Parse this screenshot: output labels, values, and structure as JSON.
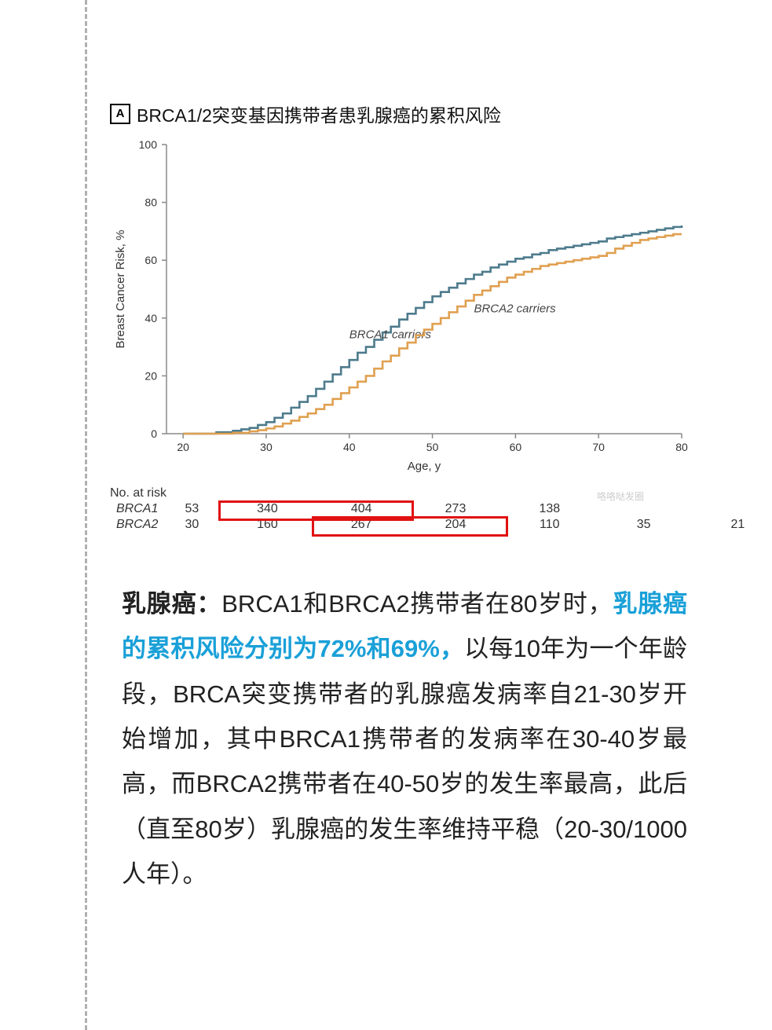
{
  "chart": {
    "panel_label": "A",
    "title": "BRCA1/2突变基因携带者患乳腺癌的累积风险",
    "type": "step-line",
    "x_label": "Age, y",
    "y_label": "Breast Cancer Risk, %",
    "x_lim": [
      18,
      80
    ],
    "y_lim": [
      0,
      100
    ],
    "x_ticks": [
      20,
      30,
      40,
      50,
      60,
      70,
      80
    ],
    "y_ticks": [
      0,
      20,
      40,
      60,
      80,
      100
    ],
    "axis_color": "#888888",
    "tick_font_size": 14,
    "label_font_size": 15,
    "grid": false,
    "series": [
      {
        "name": "BRCA1 carriers",
        "color": "#4d7b8c",
        "line_width": 2.6,
        "label_xy": [
          40,
          33
        ],
        "label_font_style": "italic",
        "data": [
          [
            20,
            0
          ],
          [
            22,
            0
          ],
          [
            24,
            0.5
          ],
          [
            26,
            1
          ],
          [
            27,
            1.5
          ],
          [
            28,
            2
          ],
          [
            29,
            3
          ],
          [
            30,
            4
          ],
          [
            31,
            5.5
          ],
          [
            32,
            7
          ],
          [
            33,
            9
          ],
          [
            34,
            11
          ],
          [
            35,
            13
          ],
          [
            36,
            15.5
          ],
          [
            37,
            18
          ],
          [
            38,
            20.5
          ],
          [
            39,
            23
          ],
          [
            40,
            25.5
          ],
          [
            41,
            28
          ],
          [
            42,
            30
          ],
          [
            43,
            32.5
          ],
          [
            44,
            35
          ],
          [
            45,
            37
          ],
          [
            46,
            39.5
          ],
          [
            47,
            41.5
          ],
          [
            48,
            43.5
          ],
          [
            49,
            45.5
          ],
          [
            50,
            47.5
          ],
          [
            51,
            49
          ],
          [
            52,
            50.5
          ],
          [
            53,
            52
          ],
          [
            54,
            53.5
          ],
          [
            55,
            55
          ],
          [
            56,
            56
          ],
          [
            57,
            57.5
          ],
          [
            58,
            58.5
          ],
          [
            59,
            59.5
          ],
          [
            60,
            60.5
          ],
          [
            61,
            61
          ],
          [
            62,
            62
          ],
          [
            63,
            62.5
          ],
          [
            64,
            63.5
          ],
          [
            65,
            64
          ],
          [
            66,
            64.5
          ],
          [
            67,
            65
          ],
          [
            68,
            65.5
          ],
          [
            69,
            66
          ],
          [
            70,
            66.5
          ],
          [
            71,
            67.5
          ],
          [
            72,
            68
          ],
          [
            73,
            68.5
          ],
          [
            74,
            69
          ],
          [
            75,
            69.5
          ],
          [
            76,
            70
          ],
          [
            77,
            70.5
          ],
          [
            78,
            71
          ],
          [
            79,
            71.5
          ],
          [
            80,
            72
          ]
        ]
      },
      {
        "name": "BRCA2 carriers",
        "color": "#e0a050",
        "line_width": 2.6,
        "label_xy": [
          55,
          42
        ],
        "label_font_style": "italic",
        "data": [
          [
            20,
            0
          ],
          [
            24,
            0
          ],
          [
            26,
            0.3
          ],
          [
            28,
            0.8
          ],
          [
            29,
            1.2
          ],
          [
            30,
            1.8
          ],
          [
            31,
            2.5
          ],
          [
            32,
            3.5
          ],
          [
            33,
            4.5
          ],
          [
            34,
            5.8
          ],
          [
            35,
            7
          ],
          [
            36,
            8.5
          ],
          [
            37,
            10
          ],
          [
            38,
            12
          ],
          [
            39,
            14
          ],
          [
            40,
            16
          ],
          [
            41,
            18
          ],
          [
            42,
            20
          ],
          [
            43,
            22.5
          ],
          [
            44,
            25
          ],
          [
            45,
            27
          ],
          [
            46,
            29.5
          ],
          [
            47,
            31.5
          ],
          [
            48,
            34
          ],
          [
            49,
            36
          ],
          [
            50,
            38
          ],
          [
            51,
            40
          ],
          [
            52,
            42
          ],
          [
            53,
            44
          ],
          [
            54,
            46
          ],
          [
            55,
            48
          ],
          [
            56,
            49.5
          ],
          [
            57,
            51
          ],
          [
            58,
            52.5
          ],
          [
            59,
            54
          ],
          [
            60,
            55
          ],
          [
            61,
            56
          ],
          [
            62,
            57
          ],
          [
            63,
            58
          ],
          [
            64,
            58.5
          ],
          [
            65,
            59
          ],
          [
            66,
            59.5
          ],
          [
            67,
            60
          ],
          [
            68,
            60.5
          ],
          [
            69,
            61
          ],
          [
            70,
            61.5
          ],
          [
            71,
            62.5
          ],
          [
            72,
            64
          ],
          [
            73,
            65
          ],
          [
            74,
            66
          ],
          [
            75,
            67
          ],
          [
            76,
            67.5
          ],
          [
            77,
            68
          ],
          [
            78,
            68.5
          ],
          [
            79,
            69
          ],
          [
            80,
            69
          ]
        ]
      }
    ],
    "risk_table": {
      "header": "No. at risk",
      "rows": [
        {
          "label": "BRCA1",
          "values": [
            "53",
            "340",
            "404",
            "273",
            "138",
            "",
            ""
          ]
        },
        {
          "label": "BRCA2",
          "values": [
            "30",
            "160",
            "267",
            "204",
            "110",
            "35",
            "21"
          ]
        }
      ],
      "col_ages": [
        20,
        30,
        40,
        50,
        60,
        70,
        80
      ],
      "highlights": [
        {
          "row": 0,
          "col_from": 1,
          "col_to": 2
        },
        {
          "row": 1,
          "col_from": 2,
          "col_to": 3
        }
      ],
      "highlight_color": "#e11111"
    },
    "watermark": "咯咯哒发圈"
  },
  "paragraph": {
    "lead_bold": "乳腺癌：",
    "seg1": "BRCA1和BRCA2携带者在80岁时，",
    "highlight": "乳腺癌的累积风险分别为72%和69%，",
    "seg2": "以每10年为一个年龄段，BRCA突变携带者的乳腺癌发病率自21-30岁开始增加，其中BRCA1携带者的发病率在30-40岁最高，而BRCA2携带者在40-50岁的发生率最高，此后（直至80岁）乳腺癌的发生率维持平稳（20-30/1000人年）。"
  }
}
